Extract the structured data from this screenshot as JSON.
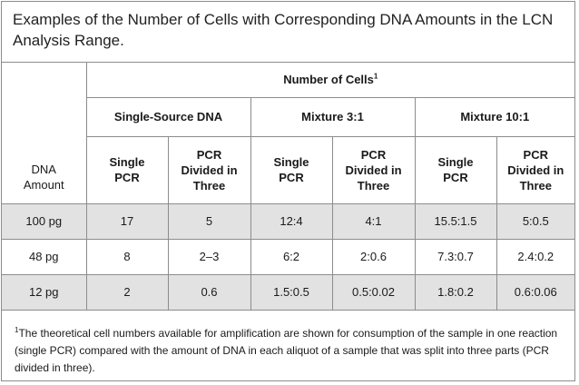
{
  "title": "Examples of the Number of Cells with Corresponding DNA Amounts in the LCN Analysis Range.",
  "table": {
    "header": {
      "number_of_cells": "Number of Cells",
      "number_of_cells_sup": "1",
      "row_label": "DNA Amount",
      "groups": [
        "Single-Source DNA",
        "Mixture 3:1",
        "Mixture 10:1"
      ],
      "subcolumns": [
        "Single PCR",
        "PCR Divided in Three",
        "Single PCR",
        "PCR Divided in Three",
        "Single PCR",
        "PCR Divided in Three"
      ]
    },
    "rows": [
      {
        "amount": "100 pg",
        "cells": [
          "17",
          "5",
          "12:4",
          "4:1",
          "15.5:1.5",
          "5:0.5"
        ]
      },
      {
        "amount": "48 pg",
        "cells": [
          "8",
          "2–3",
          "6:2",
          "2:0.6",
          "7.3:0.7",
          "2.4:0.2"
        ]
      },
      {
        "amount": "12 pg",
        "cells": [
          "2",
          "0.6",
          "1.5:0.5",
          "0.5:0.02",
          "1.8:0.2",
          "0.6:0.06"
        ]
      }
    ],
    "shading": {
      "shaded_row_color": "#e2e2e2",
      "border_color": "#8c8c8c"
    }
  },
  "footnote": {
    "marker": "1",
    "text": "The theoretical cell numbers available for amplification are shown for consumption of the sample in one reaction (single PCR) compared with the amount of DNA in each aliquot of a sample that was split into three parts (PCR divided in three)."
  }
}
